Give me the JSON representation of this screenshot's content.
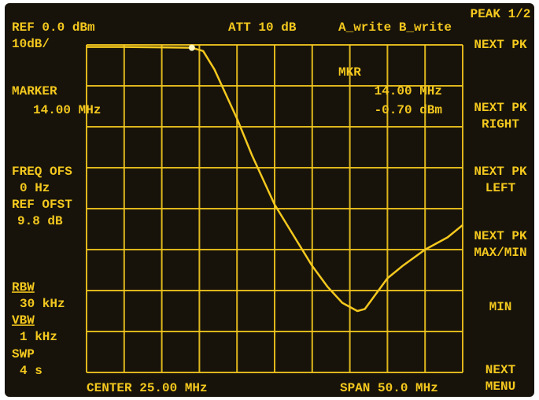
{
  "screen": {
    "ref": "REF 0.0 dBm",
    "scale": "10dB/",
    "att": "ATT 10 dB",
    "trace_mode": "A_write B_write",
    "marker_label": "MARKER",
    "marker_freq": "14.00 MHz",
    "mkr_label": "MKR",
    "mkr_freq": "14.00 MHz",
    "mkr_level": "-0.70 dBm",
    "freq_ofs_label": "FREQ OFS",
    "freq_ofs": "0 Hz",
    "ref_ofst_label": "REF OFST",
    "ref_ofst": "9.8 dB",
    "rbw_label": "RBW",
    "rbw": "30 kHz",
    "vbw_label": "VBW",
    "vbw": "1 kHz",
    "swp_label": "SWP",
    "swp": "4 s",
    "center": "CENTER 25.00 MHz",
    "span": "SPAN 50.0 MHz",
    "softkeys": [
      [
        "PEAK 1/2"
      ],
      [
        "NEXT PK"
      ],
      [
        "NEXT PK",
        "RIGHT"
      ],
      [
        "NEXT PK",
        "LEFT"
      ],
      [
        "NEXT PK",
        "MAX/MIN"
      ],
      [
        "MIN"
      ],
      [
        "NEXT",
        "MENU"
      ]
    ]
  },
  "chart_data": {
    "type": "line",
    "x": [
      0,
      5,
      10,
      14,
      15.5,
      17,
      18,
      20,
      22,
      24,
      25,
      26,
      28,
      30,
      32,
      34,
      36,
      37,
      38,
      40,
      42,
      45,
      48,
      50
    ],
    "values": [
      -0.5,
      -0.5,
      -0.6,
      -0.7,
      -1.5,
      -6,
      -10,
      -18,
      -27,
      -35,
      -39,
      -42,
      -48,
      -54,
      -59,
      -63,
      -65,
      -64.5,
      -62,
      -57,
      -54,
      -50,
      -47,
      -44
    ],
    "color": "#f4c81e",
    "xlim": [
      0,
      50
    ],
    "ylim": [
      -80,
      0
    ],
    "xticks": [
      0,
      5,
      10,
      15,
      20,
      25,
      30,
      35,
      40,
      45,
      50
    ],
    "yticks": [
      -80,
      -70,
      -60,
      -50,
      -40,
      -30,
      -20,
      -10,
      0
    ],
    "grid": true
  }
}
